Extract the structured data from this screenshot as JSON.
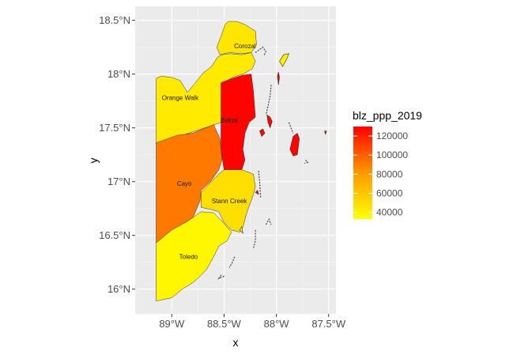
{
  "chart_data": {
    "type": "choropleth",
    "x_label": "x",
    "y_label": "y",
    "x_range": [
      -89.35,
      -87.43
    ],
    "y_range": [
      15.77,
      18.63
    ],
    "x_ticks": [
      {
        "value": -89.0,
        "label": "89°W"
      },
      {
        "value": -88.5,
        "label": "88.5°W"
      },
      {
        "value": -88.0,
        "label": "88°W"
      },
      {
        "value": -87.5,
        "label": "87.5°W"
      }
    ],
    "y_ticks": [
      {
        "value": 16.0,
        "label": "16°N"
      },
      {
        "value": 16.5,
        "label": "16.5°N"
      },
      {
        "value": 17.0,
        "label": "17°N"
      },
      {
        "value": 17.5,
        "label": "17.5°N"
      },
      {
        "value": 18.0,
        "label": "18°N"
      },
      {
        "value": 18.5,
        "label": "18.5°N"
      }
    ],
    "grid": true,
    "legend": {
      "title": "blz_ppp_2019",
      "position": "right",
      "breaks": [
        40000,
        60000,
        80000,
        100000,
        120000
      ],
      "break_labels": [
        "40000",
        "60000",
        "80000",
        "100000",
        "120000"
      ],
      "min": 33000,
      "max": 130000,
      "low_color": "#ffff00",
      "high_color": "#ff0000"
    },
    "districts": [
      {
        "name": "Corozal",
        "value": 45000,
        "label_lon": -88.3,
        "label_lat": 18.24,
        "outline": [
          [
            -88.46,
            18.49
          ],
          [
            -88.38,
            18.49
          ],
          [
            -88.3,
            18.46
          ],
          [
            -88.2,
            18.4
          ],
          [
            -88.19,
            18.27
          ],
          [
            -88.24,
            18.2
          ],
          [
            -88.33,
            18.19
          ],
          [
            -88.45,
            18.2
          ],
          [
            -88.54,
            18.18
          ],
          [
            -88.57,
            18.25
          ],
          [
            -88.53,
            18.35
          ],
          [
            -88.49,
            18.46
          ]
        ]
      },
      {
        "name": "Orange Walk",
        "value": 43000,
        "label_lon": -88.92,
        "label_lat": 17.76,
        "outline": [
          [
            -89.15,
            17.96
          ],
          [
            -89.1,
            17.98
          ],
          [
            -89.0,
            17.97
          ],
          [
            -88.92,
            17.94
          ],
          [
            -88.85,
            17.83
          ],
          [
            -88.79,
            17.9
          ],
          [
            -88.7,
            18.01
          ],
          [
            -88.62,
            18.07
          ],
          [
            -88.56,
            18.16
          ],
          [
            -88.52,
            18.18
          ],
          [
            -88.44,
            18.19
          ],
          [
            -88.33,
            18.18
          ],
          [
            -88.24,
            18.2
          ],
          [
            -88.2,
            18.12
          ],
          [
            -88.23,
            18.05
          ],
          [
            -88.32,
            18.0
          ],
          [
            -88.42,
            17.97
          ],
          [
            -88.5,
            17.92
          ],
          [
            -88.53,
            17.55
          ],
          [
            -89.15,
            17.35
          ]
        ]
      },
      {
        "name": "Belize",
        "value": 129000,
        "label_lon": -88.45,
        "label_lat": 17.55,
        "outline": [
          [
            -88.53,
            17.92
          ],
          [
            -88.42,
            17.96
          ],
          [
            -88.32,
            17.99
          ],
          [
            -88.24,
            18.0
          ],
          [
            -88.22,
            17.85
          ],
          [
            -88.2,
            17.6
          ],
          [
            -88.26,
            17.55
          ],
          [
            -88.3,
            17.45
          ],
          [
            -88.32,
            17.3
          ],
          [
            -88.3,
            17.2
          ],
          [
            -88.33,
            17.11
          ],
          [
            -88.5,
            17.11
          ],
          [
            -88.53,
            17.3
          ],
          [
            -88.53,
            17.55
          ]
        ]
      },
      {
        "name": "Cayo",
        "value": 92000,
        "label_lon": -88.88,
        "label_lat": 16.96,
        "outline": [
          [
            -89.15,
            17.36
          ],
          [
            -88.95,
            17.43
          ],
          [
            -88.8,
            17.45
          ],
          [
            -88.6,
            17.53
          ],
          [
            -88.54,
            17.4
          ],
          [
            -88.52,
            17.2
          ],
          [
            -88.55,
            17.11
          ],
          [
            -88.63,
            17.0
          ],
          [
            -88.72,
            16.92
          ],
          [
            -88.73,
            16.82
          ],
          [
            -88.8,
            16.66
          ],
          [
            -88.9,
            16.6
          ],
          [
            -89.0,
            16.55
          ],
          [
            -89.15,
            16.43
          ]
        ]
      },
      {
        "name": "Stann Creek",
        "value": 48000,
        "label_lon": -88.45,
        "label_lat": 16.8,
        "outline": [
          [
            -88.5,
            17.11
          ],
          [
            -88.33,
            17.11
          ],
          [
            -88.22,
            17.07
          ],
          [
            -88.2,
            16.95
          ],
          [
            -88.23,
            16.85
          ],
          [
            -88.28,
            16.72
          ],
          [
            -88.32,
            16.58
          ],
          [
            -88.35,
            16.53
          ],
          [
            -88.43,
            16.55
          ],
          [
            -88.5,
            16.62
          ],
          [
            -88.55,
            16.72
          ],
          [
            -88.62,
            16.74
          ],
          [
            -88.72,
            16.76
          ],
          [
            -88.72,
            16.9
          ],
          [
            -88.63,
            16.99
          ],
          [
            -88.55,
            17.07
          ]
        ]
      },
      {
        "name": "Toledo",
        "value": 37000,
        "label_lon": -88.84,
        "label_lat": 16.28,
        "outline": [
          [
            -89.15,
            16.43
          ],
          [
            -89.0,
            16.55
          ],
          [
            -88.85,
            16.63
          ],
          [
            -88.72,
            16.72
          ],
          [
            -88.6,
            16.71
          ],
          [
            -88.5,
            16.61
          ],
          [
            -88.43,
            16.53
          ],
          [
            -88.47,
            16.45
          ],
          [
            -88.55,
            16.4
          ],
          [
            -88.6,
            16.3
          ],
          [
            -88.67,
            16.18
          ],
          [
            -88.73,
            16.12
          ],
          [
            -88.8,
            16.06
          ],
          [
            -88.9,
            16.0
          ],
          [
            -89.0,
            15.92
          ],
          [
            -89.15,
            15.89
          ]
        ]
      }
    ],
    "islands": [
      {
        "value": 40000,
        "outline": [
          [
            -87.97,
            18.12
          ],
          [
            -87.93,
            18.18
          ],
          [
            -87.88,
            18.19
          ],
          [
            -87.9,
            18.14
          ],
          [
            -87.94,
            18.07
          ]
        ]
      },
      {
        "value": 129000,
        "outline": [
          [
            -87.99,
            17.98
          ],
          [
            -87.98,
            18.02
          ],
          [
            -87.97,
            17.97
          ],
          [
            -87.98,
            17.9
          ]
        ]
      },
      {
        "value": 129000,
        "outline": [
          [
            -88.09,
            17.62
          ],
          [
            -88.06,
            17.6
          ],
          [
            -88.04,
            17.56
          ],
          [
            -88.06,
            17.5
          ],
          [
            -88.08,
            17.55
          ]
        ]
      },
      {
        "value": 129000,
        "outline": [
          [
            -87.84,
            17.42
          ],
          [
            -87.8,
            17.45
          ],
          [
            -87.78,
            17.4
          ],
          [
            -87.8,
            17.25
          ],
          [
            -87.84,
            17.24
          ],
          [
            -87.87,
            17.3
          ]
        ]
      },
      {
        "value": 129000,
        "outline": [
          [
            -88.16,
            17.47
          ],
          [
            -88.13,
            17.49
          ],
          [
            -88.11,
            17.45
          ],
          [
            -88.14,
            17.42
          ]
        ]
      },
      {
        "value": 129000,
        "outline": [
          [
            -87.54,
            17.47
          ],
          [
            -87.52,
            17.47
          ],
          [
            -87.53,
            17.44
          ]
        ]
      },
      {
        "value": 129000,
        "outline": [
          [
            -88.2,
            16.9
          ],
          [
            -88.18,
            16.92
          ],
          [
            -88.17,
            16.88
          ]
        ]
      },
      {
        "value": 37000,
        "outline": [
          [
            -88.35,
            16.55
          ],
          [
            -88.33,
            16.58
          ],
          [
            -88.32,
            16.52
          ]
        ]
      }
    ],
    "coastline": [
      [
        [
          -88.2,
          18.2
        ],
        [
          -88.13,
          18.25
        ],
        [
          -88.1,
          18.21
        ],
        [
          -88.12,
          18.17
        ]
      ],
      [
        [
          -88.05,
          17.9
        ],
        [
          -88.06,
          17.8
        ],
        [
          -88.08,
          17.7
        ],
        [
          -88.1,
          17.62
        ]
      ],
      [
        [
          -87.88,
          17.55
        ],
        [
          -87.86,
          17.5
        ],
        [
          -87.84,
          17.45
        ]
      ],
      [
        [
          -87.72,
          17.2
        ],
        [
          -87.7,
          17.18
        ],
        [
          -87.73,
          17.17
        ]
      ],
      [
        [
          -88.17,
          17.1
        ],
        [
          -88.16,
          17.0
        ],
        [
          -88.15,
          16.85
        ]
      ],
      [
        [
          -88.1,
          16.6
        ],
        [
          -88.07,
          16.65
        ],
        [
          -88.05,
          16.6
        ]
      ],
      [
        [
          -88.2,
          16.55
        ],
        [
          -88.2,
          16.45
        ],
        [
          -88.22,
          16.38
        ]
      ],
      [
        [
          -88.4,
          16.3
        ],
        [
          -88.42,
          16.25
        ],
        [
          -88.45,
          16.2
        ]
      ],
      [
        [
          -88.5,
          16.12
        ],
        [
          -88.55,
          16.1
        ],
        [
          -88.52,
          16.14
        ]
      ]
    ]
  }
}
